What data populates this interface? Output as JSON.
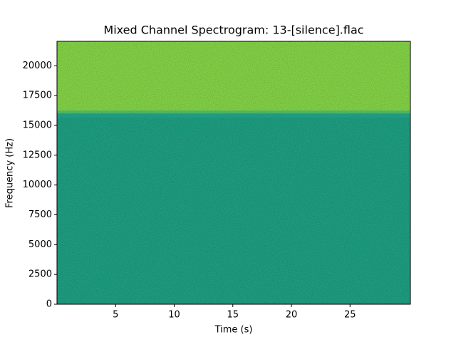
{
  "chart_data": {
    "type": "spectrogram",
    "title": "Mixed Channel Spectrogram: 13-[silence].flac",
    "xlabel": "Time (s)",
    "ylabel": "Frequency (Hz)",
    "xlim": [
      0,
      30.15
    ],
    "xticks": [
      5,
      10,
      15,
      20,
      25
    ],
    "ylim": [
      0,
      22050
    ],
    "yticks": [
      0,
      2500,
      5000,
      7500,
      10000,
      12500,
      15000,
      17500,
      20000
    ],
    "band_edge": 16000,
    "colors": [
      "#22a184",
      "#86d549"
    ]
  }
}
